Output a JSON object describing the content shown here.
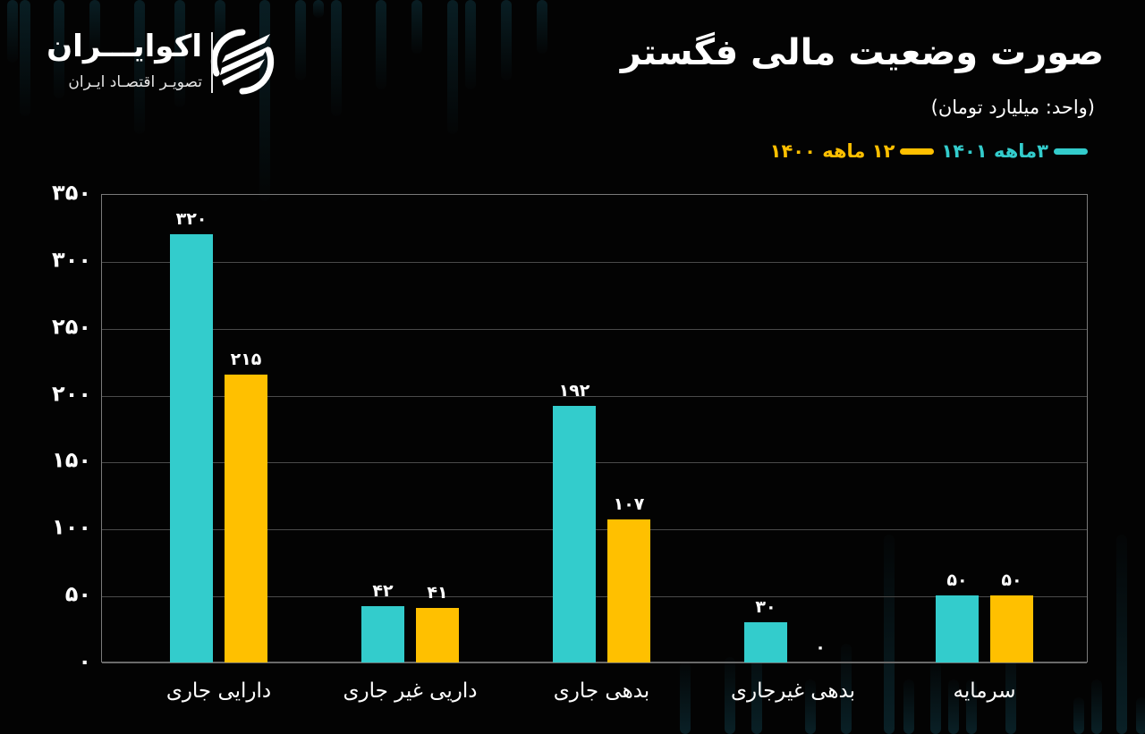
{
  "brand": {
    "name": "اکوایـــران",
    "tagline": "تصویـر اقتصـاد ایـران"
  },
  "header": {
    "title": "صورت وضعیت مالی فگستر",
    "unit": "(واحد: میلیارد تومان)"
  },
  "legend": [
    {
      "label": "۳ماهه ۱۴۰۱",
      "color": "#33CCCC"
    },
    {
      "label": "۱۲ ماهه ۱۴۰۰",
      "color": "#FFC000"
    }
  ],
  "colors": {
    "background": "#030303",
    "series1": "#33CCCC",
    "series2": "#FFC000",
    "grid": "#4a4a4a",
    "text": "#FFFFFF"
  },
  "y_axis": {
    "ticks": [
      "۰",
      "۵۰",
      "۱۰۰",
      "۱۵۰",
      "۲۰۰",
      "۲۵۰",
      "۳۰۰",
      "۳۵۰"
    ],
    "tick_values": [
      0,
      50,
      100,
      150,
      200,
      250,
      300,
      350
    ]
  },
  "x_axis": {
    "labels": [
      "دارایی جاری",
      "داریی غیر جاری",
      "بدهی جاری",
      "بدهی غیرجاری",
      "سرمایه"
    ]
  },
  "bar_labels": {
    "series1": [
      "۳۲۰",
      "۴۲",
      "۱۹۲",
      "۳۰",
      "۵۰"
    ],
    "series2": [
      "۲۱۵",
      "۴۱",
      "۱۰۷",
      "۰",
      "۵۰"
    ]
  },
  "chart_data": {
    "type": "bar",
    "title": "صورت وضعیت مالی فگستر",
    "subtitle": "(واحد: میلیارد تومان)",
    "xlabel": "",
    "ylabel": "میلیارد تومان",
    "categories": [
      "دارایی جاری",
      "داریی غیر جاری",
      "بدهی جاری",
      "بدهی غیرجاری",
      "سرمایه"
    ],
    "series": [
      {
        "name": "۳ماهه ۱۴۰۱",
        "color": "#33CCCC",
        "values": [
          320,
          42,
          192,
          30,
          50
        ]
      },
      {
        "name": "۱۲ ماهه ۱۴۰۰",
        "color": "#FFC000",
        "values": [
          215,
          41,
          107,
          0,
          50
        ]
      }
    ],
    "ylim": [
      0,
      350
    ],
    "yticks": [
      0,
      50,
      100,
      150,
      200,
      250,
      300,
      350
    ],
    "grid": true,
    "legend_position": "top-right",
    "data_labels": true
  }
}
